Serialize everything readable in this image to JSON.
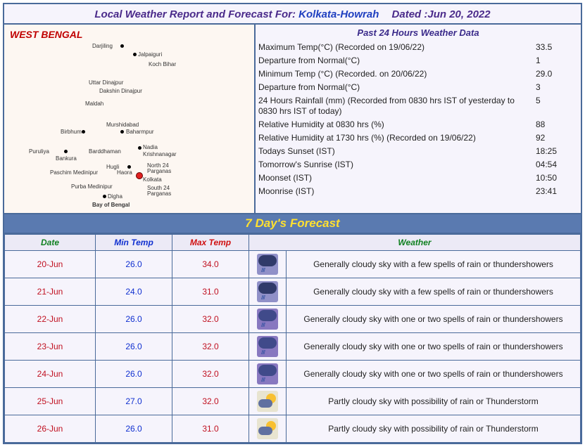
{
  "header": {
    "prefix": "Local Weather Report and Forecast For:",
    "location": "Kolkata-Howrah",
    "dated_prefix": "Dated :",
    "date": "Jun 20, 2022"
  },
  "map": {
    "region_title": "WEST BENGAL",
    "districts": [
      "Darjiling",
      "Jalpaiguri",
      "Koch Bihar",
      "Uttar Dinajpur",
      "Dakshin Dinajpur",
      "Maldah",
      "Murshidabad",
      "Birbhum",
      "Baharmpur",
      "Puruliya",
      "Bankura",
      "Barddhaman",
      "Nadia",
      "Krishnanagar",
      "Hugli",
      "Haora",
      "North 24 Parganas",
      "Paschim Medinipur",
      "Kolkata",
      "Purba Medinipur",
      "South 24 Parganas",
      "Digha",
      "Bay of Bengal"
    ]
  },
  "past24": {
    "title": "Past 24 Hours Weather Data",
    "rows": [
      {
        "label": "Maximum Temp(°C) (Recorded on 19/06/22)",
        "value": "33.5"
      },
      {
        "label": "Departure from Normal(°C)",
        "value": "1"
      },
      {
        "label": "Minimum Temp (°C) (Recorded. on 20/06/22)",
        "value": "29.0"
      },
      {
        "label": "Departure from Normal(°C)",
        "value": "3"
      },
      {
        "label": "24 Hours Rainfall (mm) (Recorded from 0830 hrs IST of yesterday to 0830 hrs IST of today)",
        "value": "5"
      },
      {
        "label": "Relative Humidity at 0830 hrs (%)",
        "value": "88"
      },
      {
        "label": "Relative Humidity at 1730 hrs (%) (Recorded on 19/06/22)",
        "value": "92"
      },
      {
        "label": "Todays Sunset (IST)",
        "value": "18:25"
      },
      {
        "label": "Tomorrow's Sunrise (IST)",
        "value": "04:54"
      },
      {
        "label": "Moonset (IST)",
        "value": "10:50"
      },
      {
        "label": "Moonrise (IST)",
        "value": "23:41"
      }
    ]
  },
  "forecast": {
    "section_title": "7 Day's Forecast",
    "headers": {
      "date": "Date",
      "min": "Min Temp",
      "max": "Max Temp",
      "weather": "Weather"
    },
    "rows": [
      {
        "date": "20-Jun",
        "min": "26.0",
        "max": "34.0",
        "icon": "rainheavy",
        "desc": "Generally cloudy sky with a few spells of rain or thundershowers"
      },
      {
        "date": "21-Jun",
        "min": "24.0",
        "max": "31.0",
        "icon": "rainheavy",
        "desc": "Generally cloudy sky with a few spells of rain or thundershowers"
      },
      {
        "date": "22-Jun",
        "min": "26.0",
        "max": "32.0",
        "icon": "rainlight",
        "desc": "Generally cloudy sky with one or two spells of rain or thundershowers"
      },
      {
        "date": "23-Jun",
        "min": "26.0",
        "max": "32.0",
        "icon": "rainlight",
        "desc": "Generally cloudy sky with one or two spells of rain or thundershowers"
      },
      {
        "date": "24-Jun",
        "min": "26.0",
        "max": "32.0",
        "icon": "rainlight",
        "desc": "Generally cloudy sky with one or two spells of rain or thundershowers"
      },
      {
        "date": "25-Jun",
        "min": "27.0",
        "max": "32.0",
        "icon": "partly",
        "desc": "Partly cloudy sky with possibility of rain or Thunderstorm"
      },
      {
        "date": "26-Jun",
        "min": "26.0",
        "max": "31.0",
        "icon": "partly",
        "desc": "Partly cloudy sky with possibility of rain or Thunderstorm"
      }
    ]
  },
  "styling": {
    "border_color": "#4a6a9a",
    "bg_color": "#f6f4fc",
    "map_bg": "#fdf7f2",
    "forecast_header_bg": "#5a7ab0",
    "forecast_header_color": "#ffe030",
    "date_color": "#c01020",
    "min_color": "#1030d0",
    "max_color": "#c01020",
    "green_header": "#108020"
  }
}
